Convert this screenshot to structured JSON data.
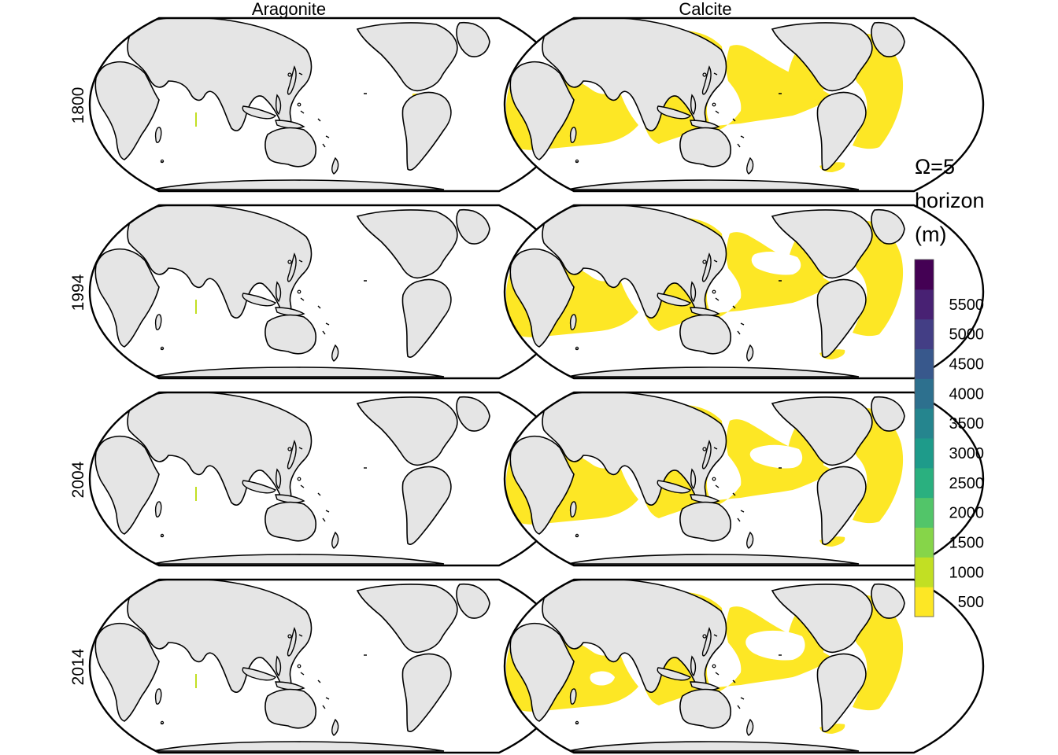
{
  "columns": [
    {
      "title": "Aragonite"
    },
    {
      "title": "Calcite"
    }
  ],
  "rows": [
    {
      "label": "1800"
    },
    {
      "label": "1994"
    },
    {
      "label": "2004"
    },
    {
      "label": "2014"
    }
  ],
  "legend": {
    "title_lines": [
      "Ω=5",
      "horizon",
      "(m)"
    ],
    "tick_labels": [
      "5500",
      "5000",
      "4500",
      "4000",
      "3500",
      "3000",
      "2500",
      "2000",
      "1500",
      "1000",
      "500"
    ],
    "bins": [
      {
        "color": "#FDE725"
      },
      {
        "color": "#C2DF23"
      },
      {
        "color": "#86D549"
      },
      {
        "color": "#52C569"
      },
      {
        "color": "#2AB07F"
      },
      {
        "color": "#1E9B8A"
      },
      {
        "color": "#25858E"
      },
      {
        "color": "#2D708E"
      },
      {
        "color": "#38588C"
      },
      {
        "color": "#433E85"
      },
      {
        "color": "#482173"
      },
      {
        "color": "#440154"
      }
    ]
  },
  "colors": {
    "land": "#E5E5E5",
    "ocean": "#FFFFFF",
    "coast": "#000000",
    "fill_500": "#FDE725",
    "fill_1000": "#C2DF23"
  }
}
